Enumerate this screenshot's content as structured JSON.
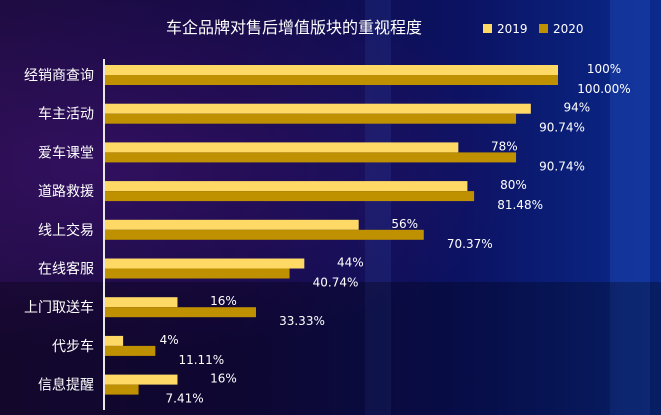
{
  "chart_data": {
    "type": "bar",
    "orientation": "horizontal",
    "title": "车企品牌对售后增值版块的重视程度",
    "categories": [
      "经销商查询",
      "车主活动",
      "爱车课堂",
      "道路救援",
      "线上交易",
      "在线客服",
      "上门取送车",
      "代步车",
      "信息提醒"
    ],
    "series": [
      {
        "name": "2019",
        "color": "#ffd966",
        "values": [
          100,
          94,
          78,
          80,
          56,
          44,
          16,
          4,
          16
        ],
        "labels": [
          "100%",
          "94%",
          "78%",
          "80%",
          "56%",
          "44%",
          "16%",
          "4%",
          "16%"
        ]
      },
      {
        "name": "2020",
        "color": "#bf9000",
        "values": [
          100,
          90.74,
          90.74,
          81.48,
          70.37,
          40.74,
          33.33,
          11.11,
          7.41
        ],
        "labels": [
          "100.00%",
          "90.74%",
          "90.74%",
          "81.48%",
          "70.37%",
          "40.74%",
          "33.33%",
          "11.11%",
          "7.41%"
        ]
      }
    ],
    "xlim": [
      0,
      100
    ],
    "legend": "top-right",
    "grid": false
  }
}
